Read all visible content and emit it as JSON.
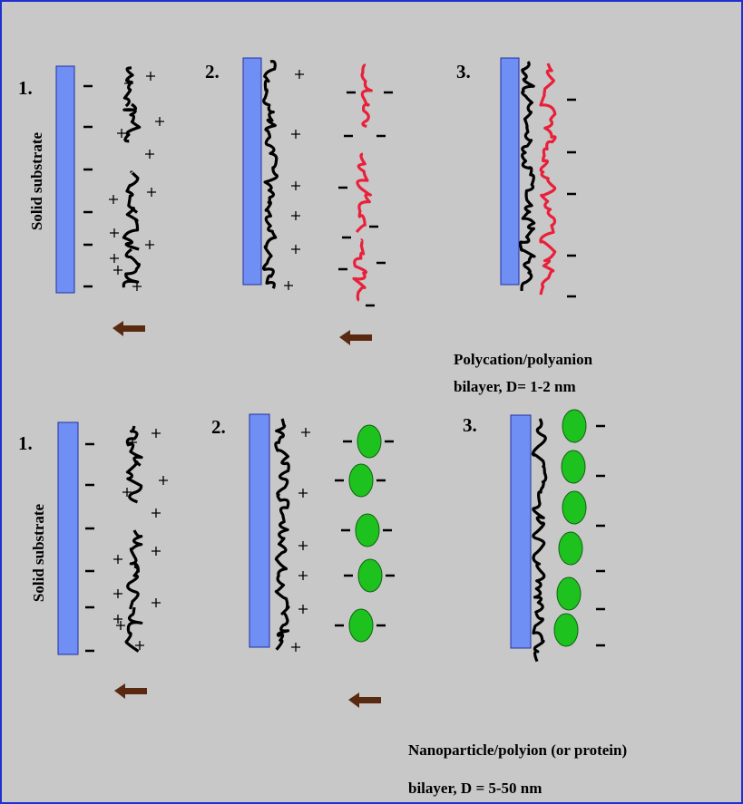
{
  "polyelectrolyte_row": {
    "steps": [
      "1.",
      "2.",
      "3."
    ],
    "substrate_label": "Solid substrate",
    "caption": [
      "Polycation/polyanion",
      "bilayer, D= 1-2 nm"
    ]
  },
  "nanoparticle_row": {
    "steps": [
      "1.",
      "2.",
      "3."
    ],
    "substrate_label": "Solid substrate",
    "caption": [
      "Nanoparticle/polyion (or protein)",
      "bilayer, D = 5-50 nm"
    ]
  }
}
